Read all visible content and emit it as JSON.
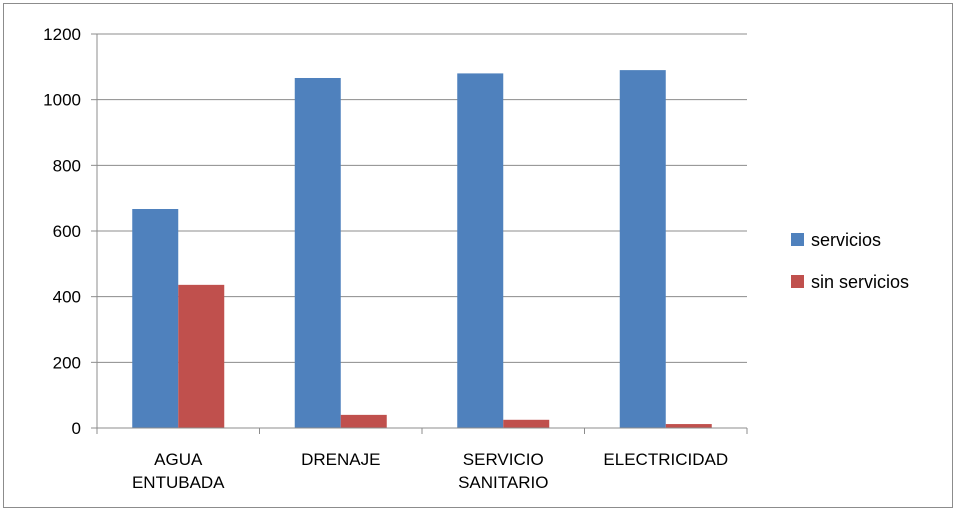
{
  "chart_data": {
    "type": "bar",
    "categories": [
      [
        "AGUA",
        "ENTUBADA"
      ],
      [
        "DRENAJE"
      ],
      [
        "SERVICIO",
        "SANITARIO"
      ],
      [
        "ELECTRICIDAD"
      ]
    ],
    "series": [
      {
        "name": "servicios",
        "color": "#4F81BD",
        "values": [
          667,
          1066,
          1080,
          1090
        ]
      },
      {
        "name": "sin servicios",
        "color": "#C0504D",
        "values": [
          436,
          40,
          25,
          12
        ]
      }
    ],
    "ylim": [
      0,
      1200
    ],
    "yticks": [
      0,
      200,
      400,
      600,
      800,
      1000,
      1200
    ],
    "title": "",
    "xlabel": "",
    "ylabel": "",
    "grid": true,
    "legend_position": "right"
  }
}
